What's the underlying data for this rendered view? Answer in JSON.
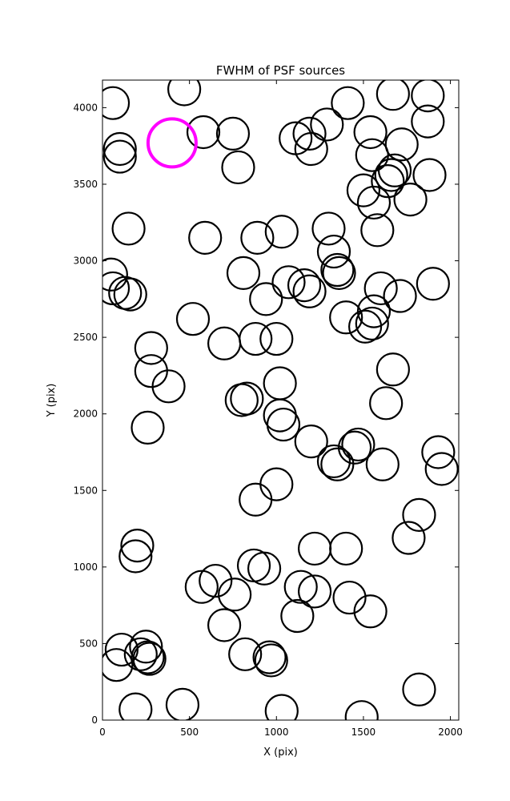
{
  "chart_data": {
    "type": "scatter",
    "title": "FWHM of PSF sources",
    "xlabel": "X (pix)",
    "ylabel": "Y (pix)",
    "xlim": [
      0,
      2048
    ],
    "ylim": [
      0,
      4180
    ],
    "xticks": [
      0,
      500,
      1000,
      1500,
      2000
    ],
    "yticks": [
      0,
      500,
      1000,
      1500,
      2000,
      2500,
      3000,
      3500,
      4000
    ],
    "grid": false,
    "marker": "open-circle",
    "series": [
      {
        "color": "#000000",
        "points": [
          [
            60,
            4030
          ],
          [
            470,
            4120
          ],
          [
            1410,
            4030
          ],
          [
            1670,
            4090
          ],
          [
            1870,
            4080
          ],
          [
            100,
            3730
          ],
          [
            100,
            3680
          ],
          [
            580,
            3840
          ],
          [
            750,
            3830
          ],
          [
            780,
            3610
          ],
          [
            1110,
            3800
          ],
          [
            1190,
            3830
          ],
          [
            1200,
            3730
          ],
          [
            1290,
            3890
          ],
          [
            1540,
            3840
          ],
          [
            1550,
            3690
          ],
          [
            1720,
            3760
          ],
          [
            1870,
            3910
          ],
          [
            1680,
            3590
          ],
          [
            1660,
            3560
          ],
          [
            1640,
            3520
          ],
          [
            1500,
            3460
          ],
          [
            1560,
            3380
          ],
          [
            1770,
            3400
          ],
          [
            1880,
            3560
          ],
          [
            150,
            3210
          ],
          [
            590,
            3150
          ],
          [
            890,
            3150
          ],
          [
            1030,
            3190
          ],
          [
            1300,
            3210
          ],
          [
            1330,
            3060
          ],
          [
            1350,
            2940
          ],
          [
            1360,
            2920
          ],
          [
            1580,
            3200
          ],
          [
            50,
            2910
          ],
          [
            60,
            2820
          ],
          [
            130,
            2790
          ],
          [
            160,
            2780
          ],
          [
            810,
            2920
          ],
          [
            940,
            2750
          ],
          [
            1070,
            2860
          ],
          [
            1160,
            2840
          ],
          [
            1190,
            2800
          ],
          [
            1600,
            2820
          ],
          [
            1710,
            2770
          ],
          [
            1900,
            2850
          ],
          [
            520,
            2620
          ],
          [
            700,
            2460
          ],
          [
            880,
            2490
          ],
          [
            1000,
            2490
          ],
          [
            1400,
            2630
          ],
          [
            1550,
            2590
          ],
          [
            1560,
            2670
          ],
          [
            1510,
            2570
          ],
          [
            280,
            2430
          ],
          [
            280,
            2280
          ],
          [
            380,
            2180
          ],
          [
            1670,
            2290
          ],
          [
            800,
            2090
          ],
          [
            830,
            2100
          ],
          [
            1020,
            2200
          ],
          [
            1020,
            1990
          ],
          [
            1040,
            1930
          ],
          [
            1630,
            2070
          ],
          [
            260,
            1910
          ],
          [
            1200,
            1820
          ],
          [
            1330,
            1690
          ],
          [
            1350,
            1670
          ],
          [
            1450,
            1780
          ],
          [
            1470,
            1800
          ],
          [
            1610,
            1670
          ],
          [
            1930,
            1750
          ],
          [
            1950,
            1640
          ],
          [
            880,
            1440
          ],
          [
            1000,
            1540
          ],
          [
            200,
            1140
          ],
          [
            190,
            1070
          ],
          [
            870,
            1010
          ],
          [
            930,
            990
          ],
          [
            1220,
            1120
          ],
          [
            1400,
            1120
          ],
          [
            1760,
            1190
          ],
          [
            1820,
            1340
          ],
          [
            570,
            870
          ],
          [
            650,
            910
          ],
          [
            760,
            820
          ],
          [
            1140,
            870
          ],
          [
            1220,
            840
          ],
          [
            1420,
            800
          ],
          [
            1540,
            710
          ],
          [
            700,
            620
          ],
          [
            1120,
            680
          ],
          [
            110,
            460
          ],
          [
            80,
            360
          ],
          [
            220,
            430
          ],
          [
            250,
            480
          ],
          [
            260,
            410
          ],
          [
            270,
            400
          ],
          [
            820,
            430
          ],
          [
            960,
            410
          ],
          [
            970,
            390
          ],
          [
            190,
            70
          ],
          [
            460,
            100
          ],
          [
            1030,
            60
          ],
          [
            1490,
            20
          ],
          [
            1820,
            200
          ]
        ]
      },
      {
        "color": "#ff00ff",
        "points": [
          [
            400,
            3770
          ]
        ]
      }
    ]
  }
}
